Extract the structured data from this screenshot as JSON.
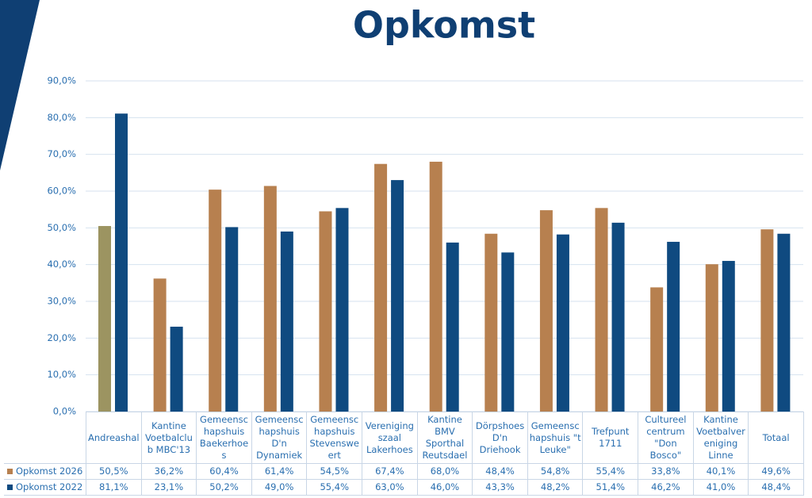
{
  "chart_data": {
    "type": "bar",
    "title": "Opkomst",
    "categories": [
      "Andreashal",
      "Kantine Voetbalclub MBC'13",
      "Gemeenschapshuis Baekerhoes",
      "Gemeenschapshuis D'n Dynamiek",
      "Gemeenschapshuis Stevensweert",
      "Verenigingszaal Lakerhoes",
      "Kantine BMV Sporthal Reutsdael",
      "Dörpshoes D'n Driehook",
      "Gemeenschapshuis \"t Leuke\"",
      "Trefpunt 1711",
      "Cultureel centrum \"Don Bosco\"",
      "Kantine Voetbalvereniging Linne",
      "Totaal"
    ],
    "series": [
      {
        "name": "Opkomst 2026",
        "color": "#b7804f",
        "point_colors": {
          "0": "#9c9461"
        },
        "values": [
          50.5,
          36.2,
          60.4,
          61.4,
          54.5,
          67.4,
          68.0,
          48.4,
          54.8,
          55.4,
          33.8,
          40.1,
          49.6
        ],
        "value_labels": [
          "50,5%",
          "36,2%",
          "60,4%",
          "61,4%",
          "54,5%",
          "67,4%",
          "68,0%",
          "48,4%",
          "54,8%",
          "55,4%",
          "33,8%",
          "40,1%",
          "49,6%"
        ]
      },
      {
        "name": "Opkomst 2022",
        "color": "#0f4a80",
        "values": [
          81.1,
          23.1,
          50.2,
          49.0,
          55.4,
          63.0,
          46.0,
          43.3,
          48.2,
          51.4,
          46.2,
          41.0,
          48.4
        ],
        "value_labels": [
          "81,1%",
          "23,1%",
          "50,2%",
          "49,0%",
          "55,4%",
          "63,0%",
          "46,0%",
          "43,3%",
          "48,2%",
          "51,4%",
          "46,2%",
          "41,0%",
          "48,4%"
        ]
      }
    ],
    "ylim": [
      0,
      90
    ],
    "yticks": [
      {
        "value": 0,
        "label": "0,0%"
      },
      {
        "value": 10,
        "label": "10,0%"
      },
      {
        "value": 20,
        "label": "20,0%"
      },
      {
        "value": 30,
        "label": "30,0%"
      },
      {
        "value": 40,
        "label": "40,0%"
      },
      {
        "value": 50,
        "label": "50,0%"
      },
      {
        "value": 60,
        "label": "60,0%"
      },
      {
        "value": 70,
        "label": "70,0%"
      },
      {
        "value": 80,
        "label": "80,0%"
      },
      {
        "value": 90,
        "label": "90,0%"
      }
    ],
    "grid": true
  }
}
